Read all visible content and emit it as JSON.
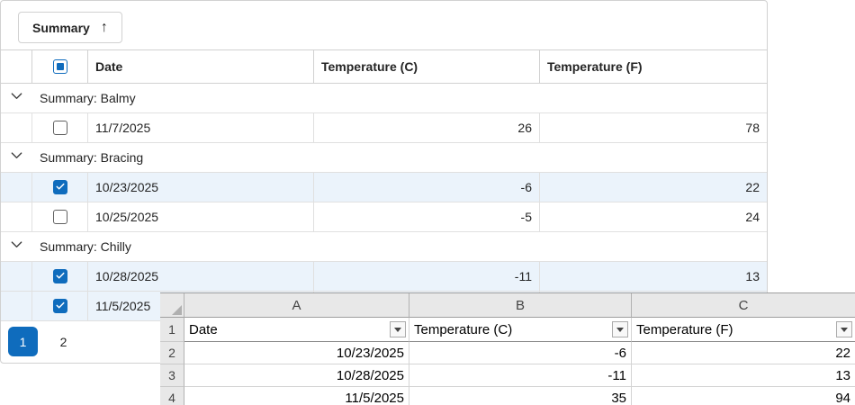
{
  "toolbar": {
    "summary_label": "Summary",
    "sort_arrow": "↑"
  },
  "grid": {
    "select_all_state": "indeterminate",
    "columns": {
      "date": "Date",
      "temp_c": "Temperature (C)",
      "temp_f": "Temperature (F)"
    },
    "groups": [
      {
        "label": "Summary: Balmy",
        "rows": [
          {
            "selected": false,
            "date": "11/7/2025",
            "temp_c": "26",
            "temp_f": "78"
          }
        ]
      },
      {
        "label": "Summary: Bracing",
        "rows": [
          {
            "selected": true,
            "date": "10/23/2025",
            "temp_c": "-6",
            "temp_f": "22"
          },
          {
            "selected": false,
            "date": "10/25/2025",
            "temp_c": "-5",
            "temp_f": "24"
          }
        ]
      },
      {
        "label": "Summary: Chilly",
        "rows": [
          {
            "selected": true,
            "date": "10/28/2025",
            "temp_c": "-11",
            "temp_f": "13"
          },
          {
            "selected": true,
            "date": "11/5/2025",
            "temp_c": "",
            "temp_f": ""
          }
        ]
      }
    ],
    "pager": {
      "pages": [
        {
          "label": "1",
          "active": true
        },
        {
          "label": "2",
          "active": false
        }
      ]
    }
  },
  "spreadsheet": {
    "column_letters": [
      "A",
      "B",
      "C"
    ],
    "row_numbers": [
      "1",
      "2",
      "3",
      "4"
    ],
    "filter_row": [
      "Date",
      "Temperature (C)",
      "Temperature (F)"
    ],
    "data_rows": [
      [
        "10/23/2025",
        "-6",
        "22"
      ],
      [
        "10/28/2025",
        "-11",
        "13"
      ],
      [
        "11/5/2025",
        "35",
        "94"
      ]
    ]
  },
  "colors": {
    "accent_blue": "#0f6cbd",
    "selected_row_bg": "#ebf3fb"
  }
}
